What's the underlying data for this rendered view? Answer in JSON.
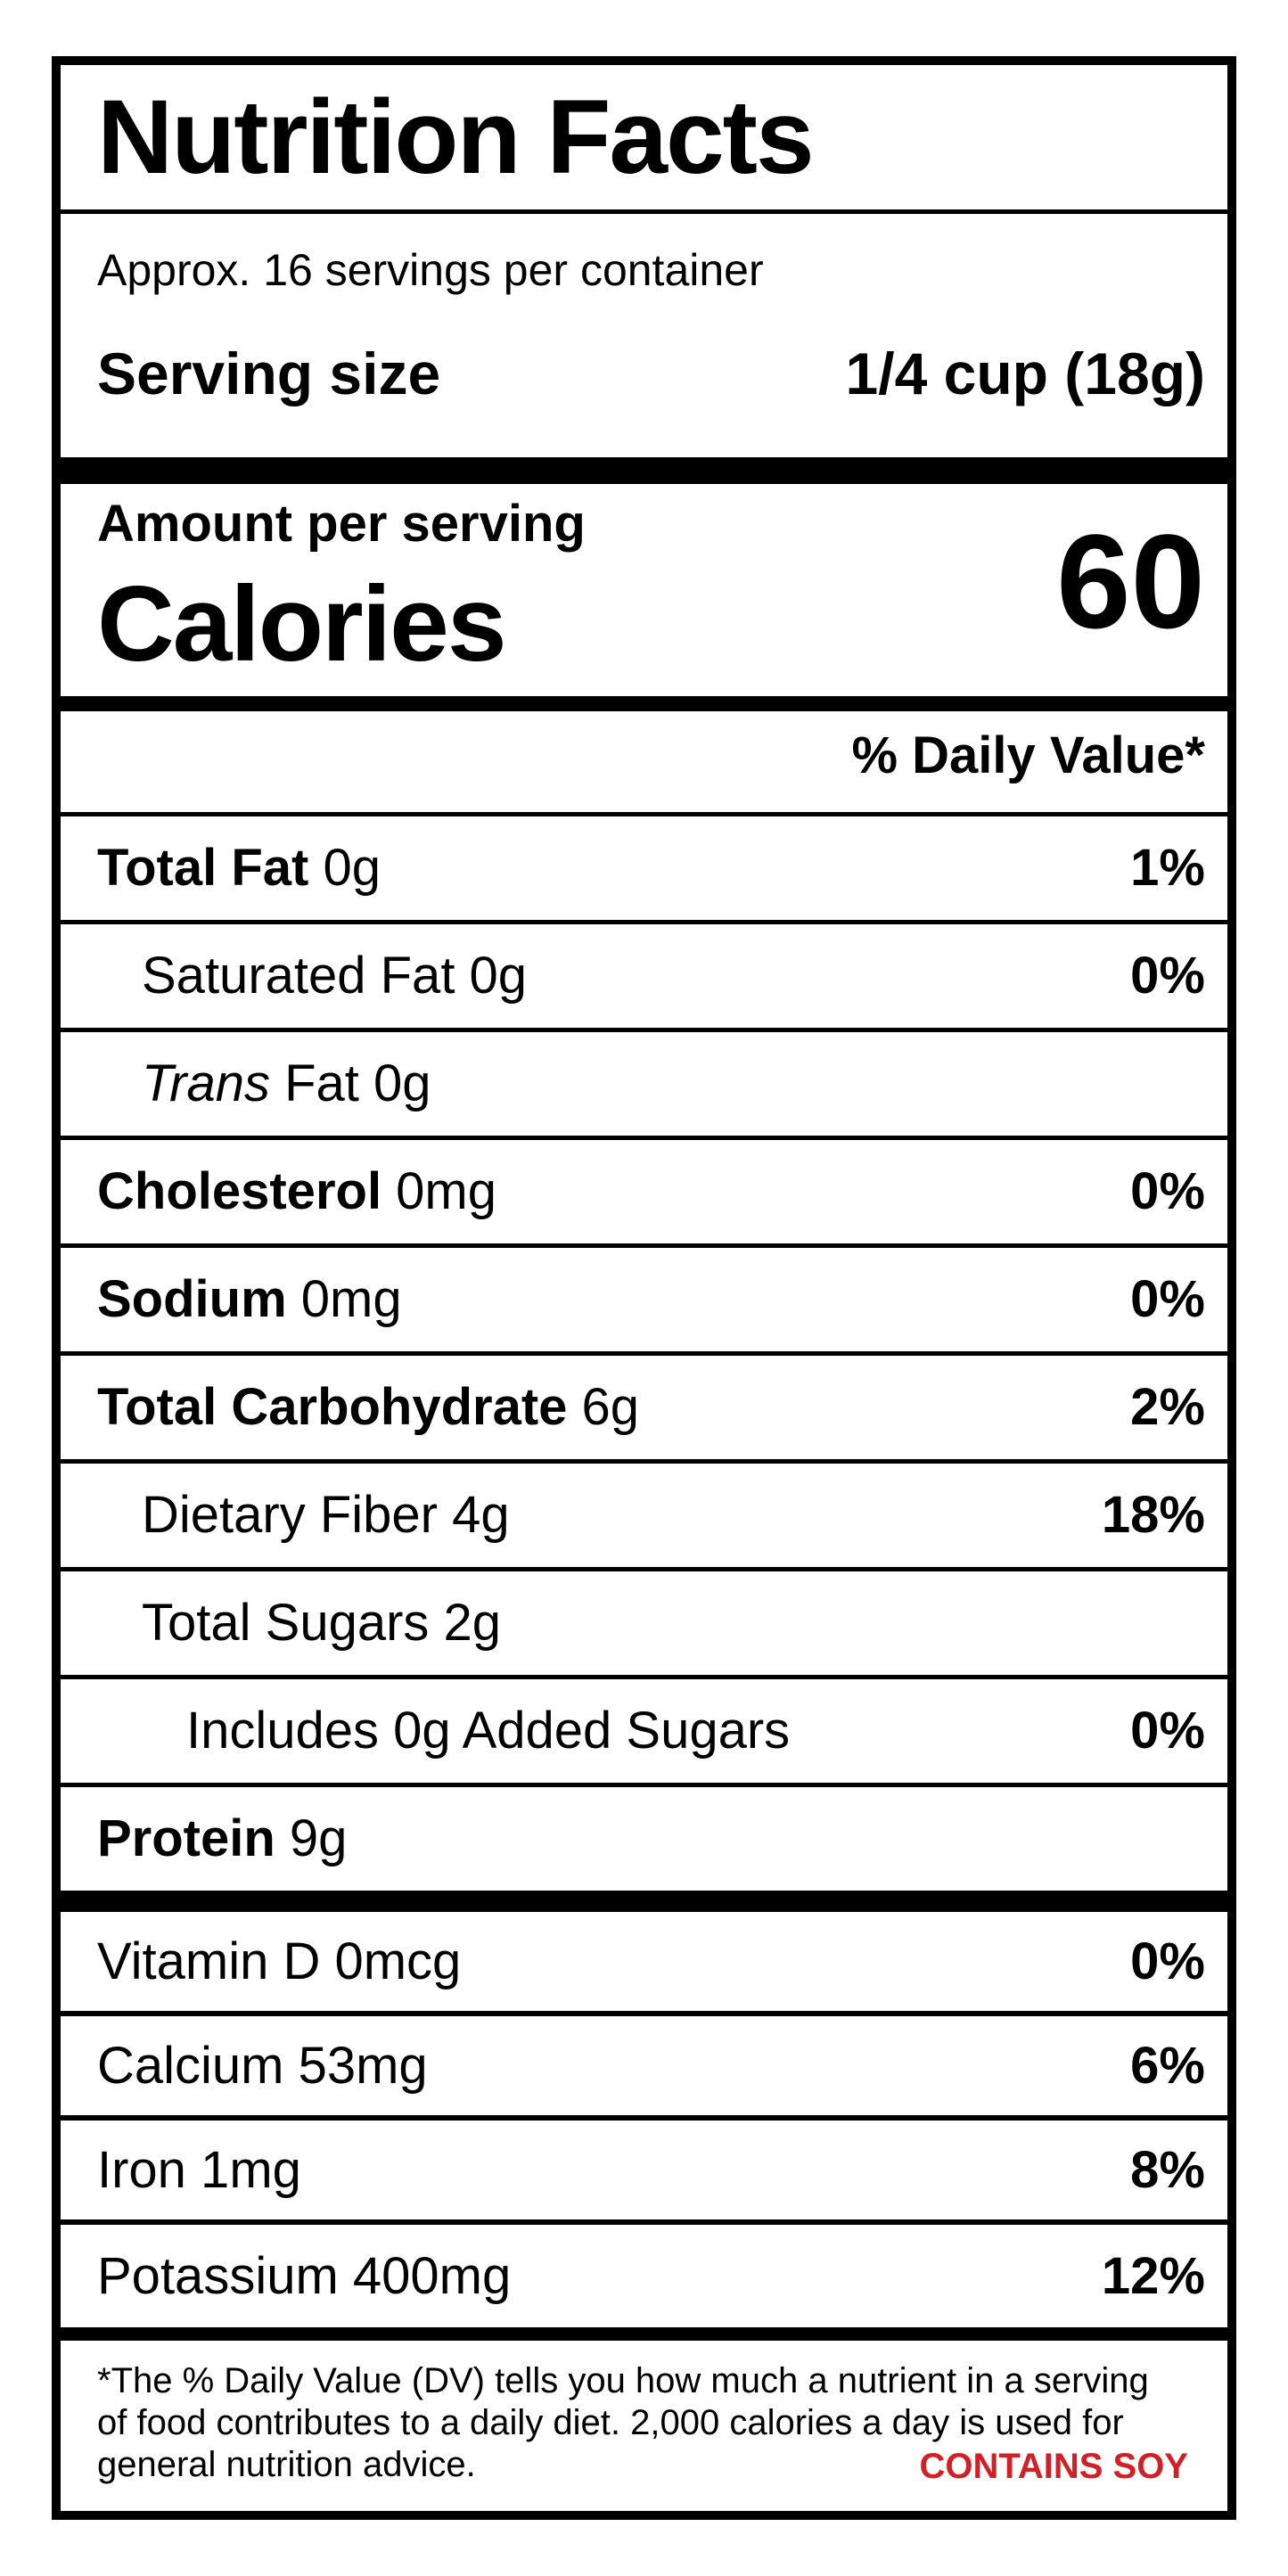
{
  "label": {
    "title": "Nutrition Facts",
    "servings_per_container": "Approx. 16 servings per container",
    "serving_size_label": "Serving size",
    "serving_size_value": "1/4 cup (18g)",
    "amount_per_serving": "Amount per serving",
    "calories_label": "Calories",
    "calories_value": "60",
    "daily_value_header": "% Daily Value*",
    "nutrients": [
      {
        "bold_part": "Total Fat",
        "rest": " 0g",
        "dv": "1%",
        "indent": 0
      },
      {
        "rest": "Saturated Fat 0g",
        "dv": "0%",
        "indent": 1
      },
      {
        "italic_part": "Trans",
        "rest": " Fat 0g",
        "dv": "",
        "indent": 1
      },
      {
        "bold_part": "Cholesterol",
        "rest": " 0mg",
        "dv": "0%",
        "indent": 0
      },
      {
        "bold_part": "Sodium",
        "rest": " 0mg",
        "dv": "0%",
        "indent": 0
      },
      {
        "bold_part": "Total Carbohydrate",
        "rest": " 6g",
        "dv": "2%",
        "indent": 0
      },
      {
        "rest": "Dietary Fiber 4g",
        "dv": "18%",
        "indent": 1
      },
      {
        "rest": "Total Sugars 2g",
        "dv": "",
        "indent": 1
      },
      {
        "rest": "Includes 0g Added Sugars",
        "dv": "0%",
        "indent": 2
      },
      {
        "bold_part": "Protein",
        "rest": " 9g",
        "dv": "",
        "indent": 0
      }
    ],
    "vitamins": [
      {
        "rest": "Vitamin D 0mcg",
        "dv": "0%"
      },
      {
        "rest": "Calcium 53mg",
        "dv": "6%"
      },
      {
        "rest": "Iron 1mg",
        "dv": "8%"
      },
      {
        "rest": "Potassium 400mg",
        "dv": "12%"
      }
    ],
    "footnote": "*The % Daily Value (DV) tells you how much a nutrient in a serving of food contributes to a daily diet. 2,000 calories a day is used for general nutrition advice.",
    "allergen": "CONTAINS SOY",
    "colors": {
      "allergen_red": "#d12127",
      "ink": "#000000",
      "background": "#ffffff"
    }
  }
}
